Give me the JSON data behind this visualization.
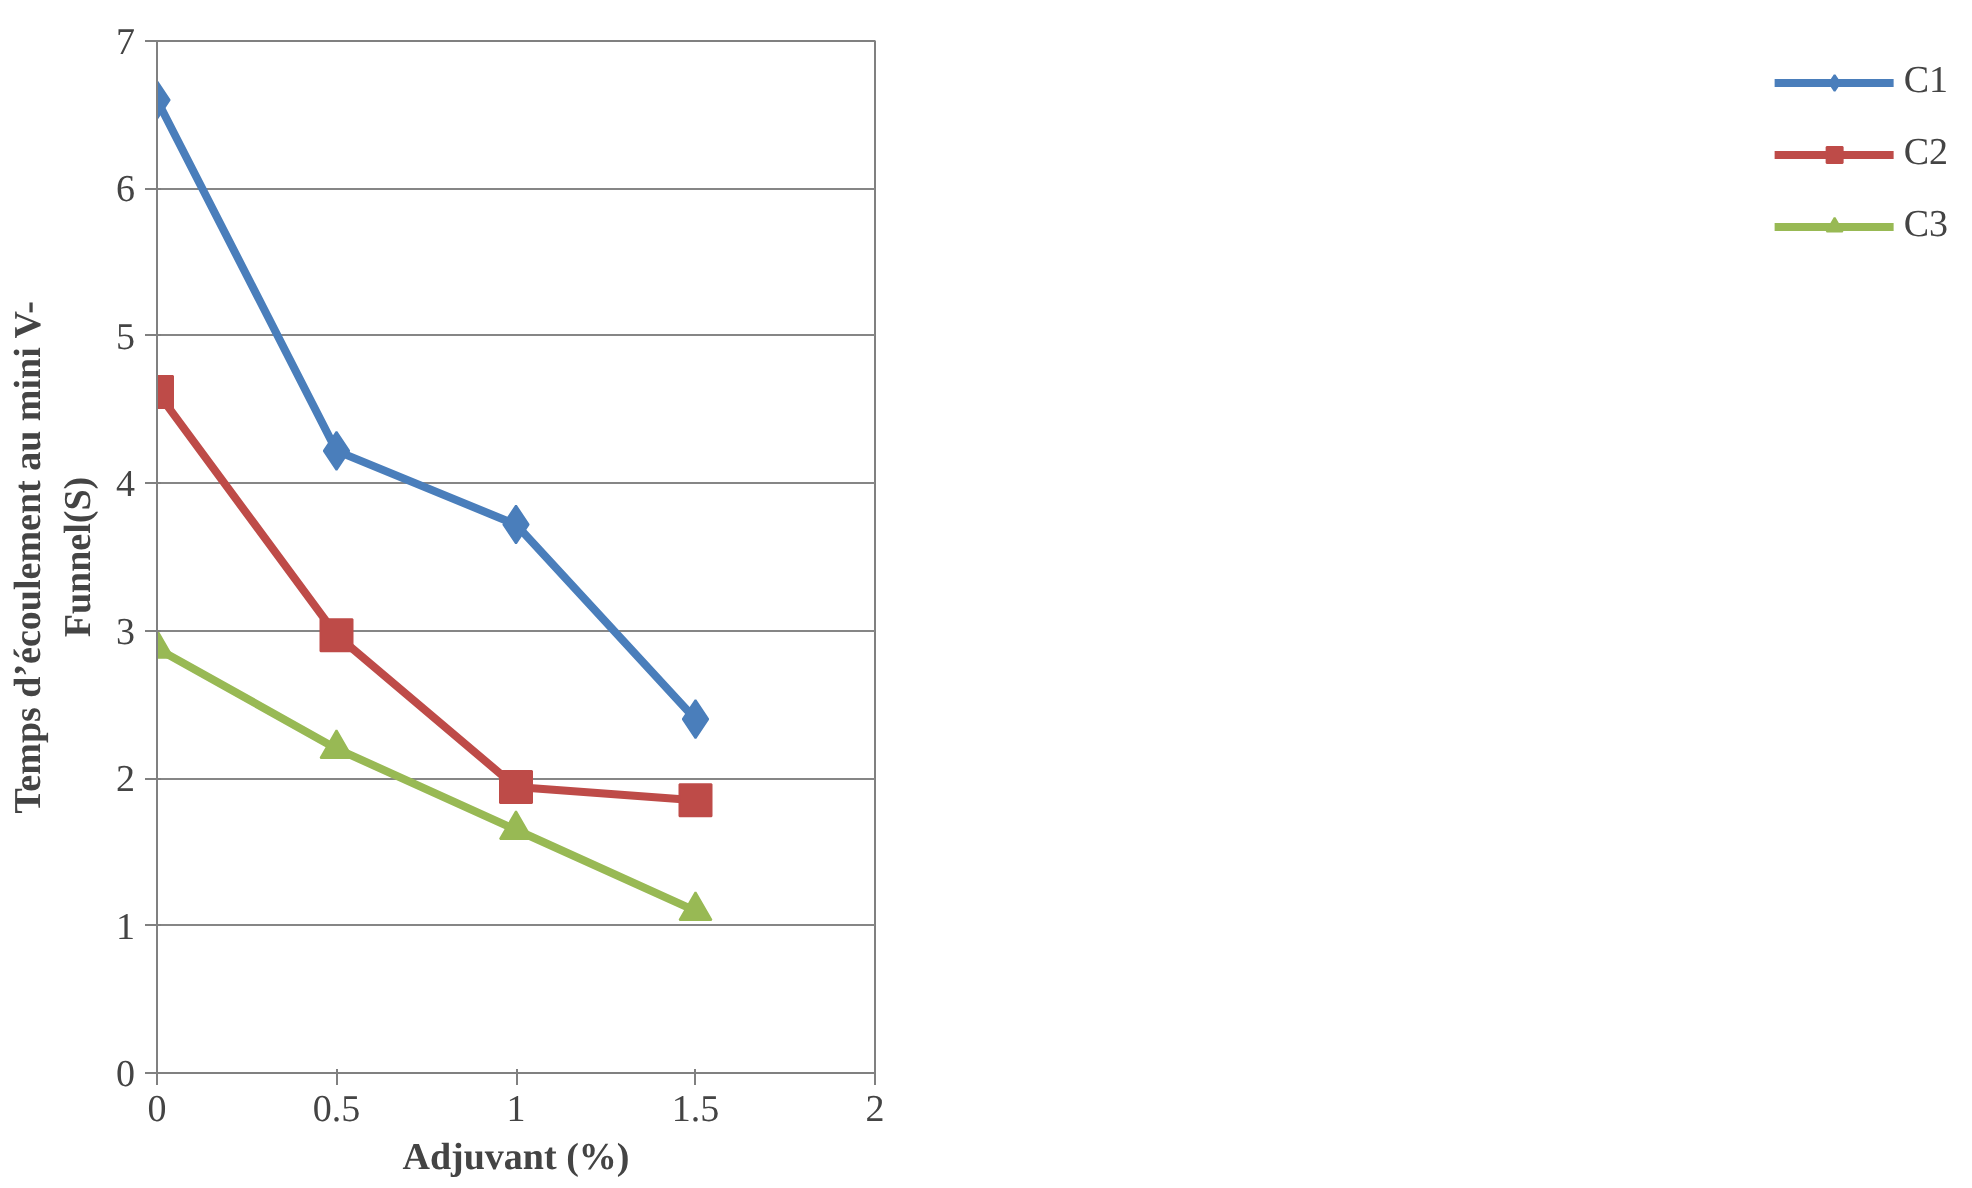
{
  "chart_data": {
    "type": "line",
    "xlabel": "Adjuvant (%)",
    "ylabel": "Temps d’écoulement au mini V-\nFunnel(S)",
    "x": [
      0,
      0.5,
      1,
      1.5
    ],
    "series": [
      {
        "name": "C1",
        "color": "#4a7ebb",
        "marker": "diamond",
        "values": [
          6.6,
          4.22,
          3.72,
          2.4
        ]
      },
      {
        "name": "C2",
        "color": "#be4b48",
        "marker": "square",
        "values": [
          4.62,
          2.97,
          1.94,
          1.85
        ]
      },
      {
        "name": "C3",
        "color": "#98b954",
        "marker": "triangle",
        "values": [
          2.88,
          2.2,
          1.65,
          1.1
        ]
      }
    ],
    "xlim": [
      0,
      2
    ],
    "xticks": [
      0,
      0.5,
      1,
      1.5,
      2
    ],
    "ylim": [
      0,
      7
    ],
    "yticks": [
      0,
      1,
      2,
      3,
      4,
      5,
      6,
      7
    ],
    "grid": "y",
    "legend": "right",
    "line_style": "solid"
  }
}
